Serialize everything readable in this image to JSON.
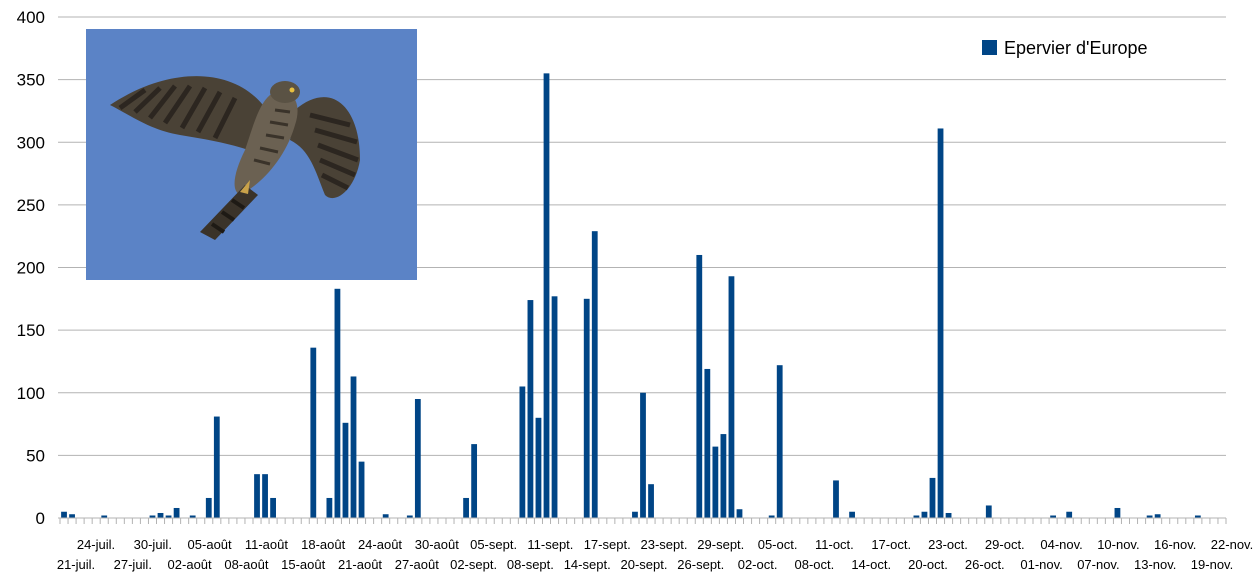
{
  "chart_data": {
    "type": "bar",
    "title": "",
    "xlabel": "",
    "ylabel": "",
    "ylim": [
      0,
      400
    ],
    "yticks": [
      0,
      50,
      100,
      150,
      200,
      250,
      300,
      350,
      400
    ],
    "grid": true,
    "legend_position": "top-right",
    "colors": {
      "bar": "#004586",
      "grid": "#b3b3b3",
      "photo_sky": "#5b83c6"
    },
    "categories_upper": [
      "24-juil.",
      "30-juil.",
      "05-août",
      "11-août",
      "18-août",
      "24-août",
      "30-août",
      "05-sept.",
      "11-sept.",
      "17-sept.",
      "23-sept.",
      "29-sept.",
      "05-oct.",
      "11-oct.",
      "17-oct.",
      "23-oct.",
      "29-oct.",
      "04-nov.",
      "10-nov.",
      "16-nov.",
      "22-nov."
    ],
    "categories_lower": [
      "21-juil.",
      "27-juil.",
      "02-août",
      "08-août",
      "15-août",
      "21-août",
      "27-août",
      "02-sept.",
      "08-sept.",
      "14-sept.",
      "20-sept.",
      "26-sept.",
      "02-oct.",
      "08-oct.",
      "14-oct.",
      "20-oct.",
      "26-oct.",
      "01-nov.",
      "07-nov.",
      "13-nov.",
      "19-nov."
    ],
    "series": [
      {
        "name": "Epervier d'Europe",
        "values": [
          5,
          3,
          0,
          0,
          0,
          2,
          0,
          0,
          0,
          0,
          0,
          2,
          4,
          2,
          8,
          0,
          2,
          0,
          16,
          81,
          0,
          0,
          0,
          0,
          35,
          35,
          16,
          0,
          0,
          0,
          0,
          136,
          0,
          16,
          183,
          76,
          113,
          45,
          0,
          0,
          3,
          0,
          0,
          2,
          95,
          0,
          0,
          0,
          0,
          0,
          16,
          59,
          0,
          0,
          0,
          0,
          0,
          105,
          174,
          80,
          355,
          177,
          0,
          0,
          0,
          175,
          229,
          0,
          0,
          0,
          0,
          5,
          100,
          27,
          0,
          0,
          0,
          0,
          0,
          210,
          119,
          57,
          67,
          193,
          7,
          0,
          0,
          0,
          2,
          122,
          0,
          0,
          0,
          0,
          0,
          0,
          30,
          0,
          5,
          0,
          0,
          0,
          0,
          0,
          0,
          0,
          2,
          5,
          32,
          311,
          4,
          0,
          0,
          0,
          0,
          10,
          0,
          0,
          0,
          0,
          0,
          0,
          0,
          2,
          0,
          5,
          0,
          0,
          0,
          0,
          0,
          8,
          0,
          0,
          0,
          2,
          3,
          0,
          0,
          0,
          0,
          2,
          0,
          0,
          0
        ]
      }
    ]
  },
  "photo": {
    "subject": "sparrowhawk-in-flight",
    "colors": {
      "sky": "#5b83c6",
      "plumage": "#4a4236",
      "bars": "#2c2620"
    }
  }
}
